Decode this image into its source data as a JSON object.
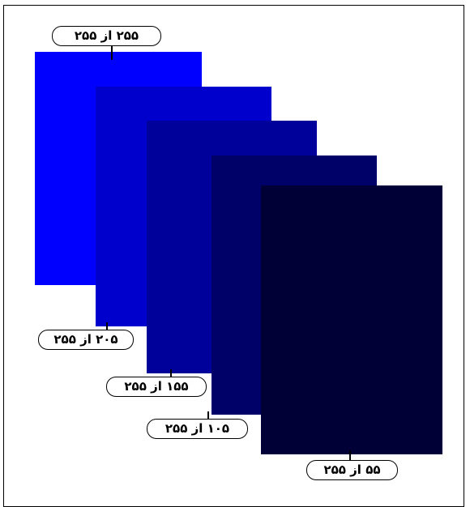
{
  "panels": [
    {
      "id": "panel-1",
      "label": "۲۵۵ از ۲۵۵",
      "value": 255,
      "max": 255,
      "color": "#0000FF"
    },
    {
      "id": "panel-2",
      "label": "۲۰۵ از ۲۵۵",
      "value": 205,
      "max": 255,
      "color": "#0000CD"
    },
    {
      "id": "panel-3",
      "label": "۱۵۵ از ۲۵۵",
      "value": 155,
      "max": 255,
      "color": "#00009B"
    },
    {
      "id": "panel-4",
      "label": "۱۰۵ از ۲۵۵",
      "value": 105,
      "max": 255,
      "color": "#000069"
    },
    {
      "id": "panel-5",
      "label": "۵۵ از ۲۵۵",
      "value": 55,
      "max": 255,
      "color": "#000037"
    }
  ]
}
